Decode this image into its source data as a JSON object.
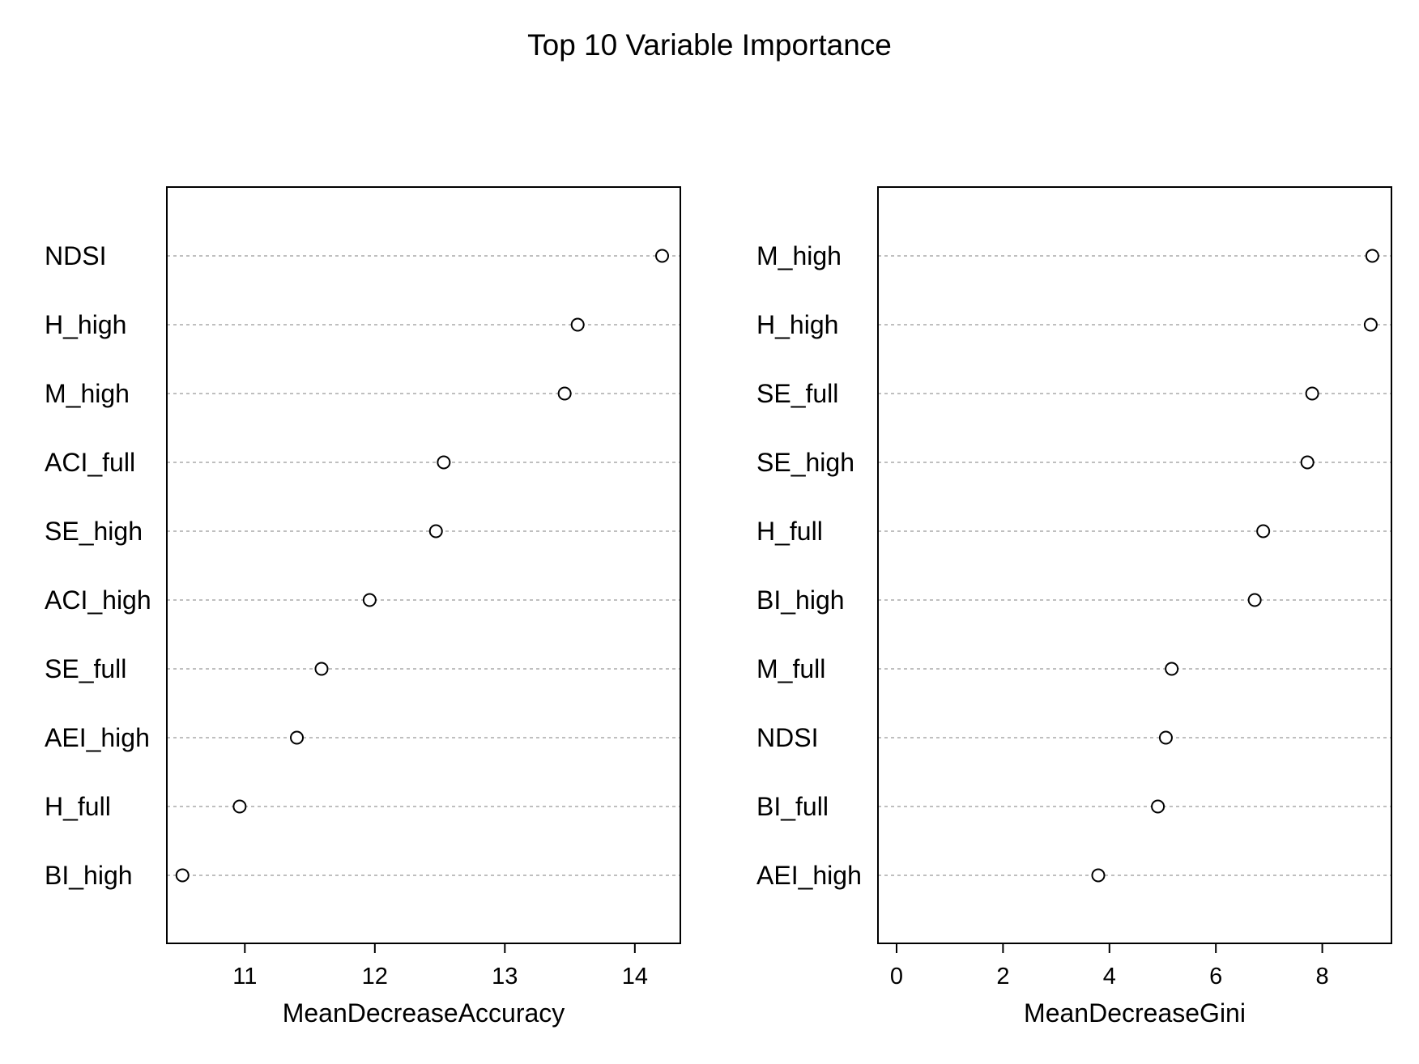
{
  "title": "Top 10 Variable Importance",
  "chart_data": [
    {
      "type": "scatter",
      "variant": "dotchart",
      "xlabel": "MeanDecreaseAccuracy",
      "xlim": [
        10.4,
        14.35
      ],
      "xticks": [
        11,
        12,
        13,
        14
      ],
      "grid": "horizontal dashed",
      "categories": [
        "NDSI",
        "H_high",
        "M_high",
        "ACI_full",
        "SE_high",
        "ACI_high",
        "SE_full",
        "AEI_high",
        "H_full",
        "BI_high"
      ],
      "values": [
        14.21,
        13.56,
        13.46,
        12.53,
        12.47,
        11.96,
        11.59,
        11.4,
        10.96,
        10.52
      ]
    },
    {
      "type": "scatter",
      "variant": "dotchart",
      "xlabel": "MeanDecreaseGini",
      "xlim": [
        -0.35,
        9.3
      ],
      "xticks": [
        0,
        2,
        4,
        6,
        8
      ],
      "grid": "horizontal dashed",
      "categories": [
        "M_high",
        "H_high",
        "SE_full",
        "SE_high",
        "H_full",
        "BI_high",
        "M_full",
        "NDSI",
        "BI_full",
        "AEI_high"
      ],
      "values": [
        8.94,
        8.91,
        7.81,
        7.72,
        6.89,
        6.73,
        5.17,
        5.06,
        4.91,
        3.79
      ]
    }
  ]
}
